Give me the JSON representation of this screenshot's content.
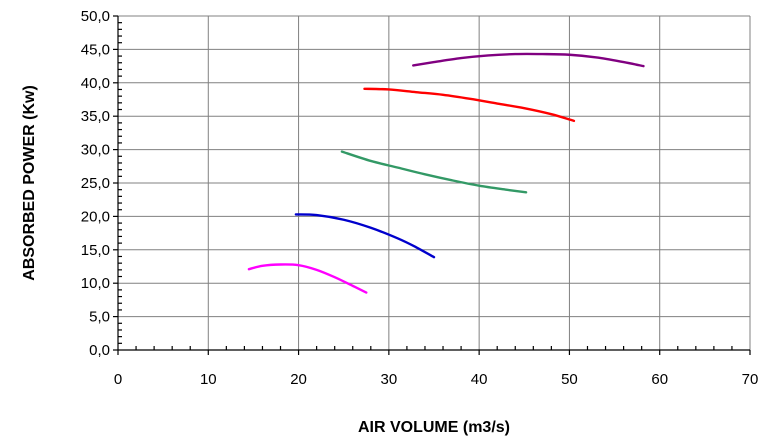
{
  "chart_data": {
    "type": "line",
    "title": "",
    "xlabel": "AIR VOLUME (m3/s)",
    "ylabel": "ABSORBED POWER (Kw)",
    "xlim": [
      0,
      70
    ],
    "ylim": [
      0,
      50
    ],
    "xticks": [
      "0",
      "10",
      "20",
      "30",
      "40",
      "50",
      "60",
      "70"
    ],
    "yticks": [
      "0,0",
      "5,0",
      "10,0",
      "15,0",
      "20,0",
      "25,0",
      "30,0",
      "35,0",
      "40,0",
      "45,0",
      "50,0"
    ],
    "grid": true,
    "legend": "none",
    "series": [
      {
        "color": "#ff00ff",
        "x": [
          14.5,
          16,
          18,
          20,
          22,
          24,
          26,
          27.5
        ],
        "y": [
          12.1,
          12.6,
          12.8,
          12.7,
          12.0,
          10.9,
          9.6,
          8.6
        ]
      },
      {
        "color": "#0000cc",
        "x": [
          19.7,
          22,
          25,
          28,
          31,
          33,
          35
        ],
        "y": [
          20.3,
          20.2,
          19.5,
          18.3,
          16.7,
          15.4,
          13.9
        ]
      },
      {
        "color": "#339966",
        "x": [
          24.8,
          28,
          31,
          34,
          37,
          40,
          43,
          45.2
        ],
        "y": [
          29.7,
          28.3,
          27.3,
          26.3,
          25.4,
          24.6,
          24.0,
          23.6
        ]
      },
      {
        "color": "#ff0000",
        "x": [
          27.3,
          30,
          33,
          36,
          39,
          42,
          45,
          48,
          50.5
        ],
        "y": [
          39.1,
          39.0,
          38.6,
          38.2,
          37.6,
          36.9,
          36.2,
          35.3,
          34.3
        ]
      },
      {
        "color": "#800080",
        "x": [
          32.7,
          35,
          38,
          41,
          44,
          47,
          50,
          53,
          56,
          58.2
        ],
        "y": [
          42.6,
          43.1,
          43.7,
          44.1,
          44.3,
          44.3,
          44.2,
          43.8,
          43.1,
          42.5
        ]
      }
    ]
  }
}
